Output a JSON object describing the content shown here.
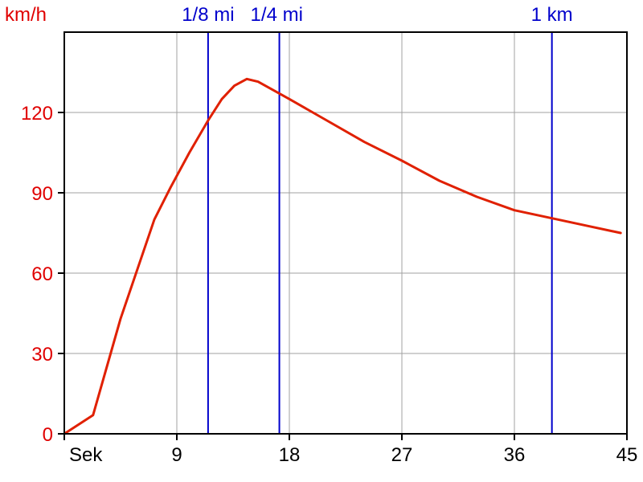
{
  "chart_data": {
    "type": "line",
    "title": "",
    "ylabel": "km/h",
    "xlabel": "Sek",
    "xlim": [
      0,
      45
    ],
    "ylim": [
      0,
      150
    ],
    "x_ticks": [
      {
        "value": 0,
        "label": "Sek"
      },
      {
        "value": 9,
        "label": "9"
      },
      {
        "value": 18,
        "label": "18"
      },
      {
        "value": 27,
        "label": "27"
      },
      {
        "value": 36,
        "label": "36"
      },
      {
        "value": 45,
        "label": "45"
      }
    ],
    "y_ticks": [
      {
        "value": 0,
        "label": "0"
      },
      {
        "value": 30,
        "label": "30"
      },
      {
        "value": 60,
        "label": "60"
      },
      {
        "value": 90,
        "label": "90"
      },
      {
        "value": 120,
        "label": "120"
      }
    ],
    "grid": true,
    "series": [
      {
        "color": "#e02000",
        "x": [
          0,
          2.3,
          4.5,
          7.2,
          8.5,
          10.0,
          11.5,
          12.6,
          13.6,
          14.6,
          15.5,
          18.0,
          21.0,
          24.0,
          27.0,
          30.0,
          33.0,
          36.0,
          39.0,
          42.0,
          44.5
        ],
        "y": [
          0,
          7,
          43,
          80,
          92,
          105,
          117,
          125,
          130,
          132.5,
          131.5,
          125,
          117,
          109,
          102,
          94.5,
          88.5,
          83.5,
          80.5,
          77.5,
          75
        ]
      }
    ],
    "vertical_markers": [
      {
        "x": 11.5,
        "label": "1/8 mi",
        "color": "#0000cc"
      },
      {
        "x": 17.2,
        "label": "1/4 mi",
        "color": "#0000cc"
      },
      {
        "x": 39.0,
        "label": "1 km",
        "color": "#0000cc"
      }
    ]
  }
}
